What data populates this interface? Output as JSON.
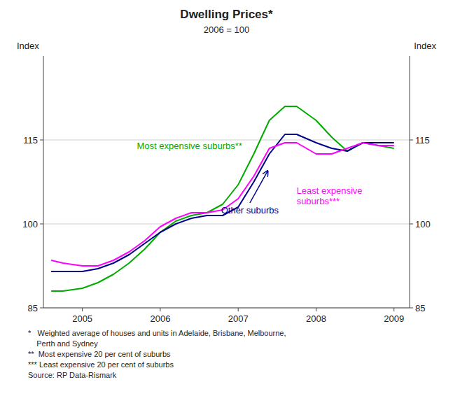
{
  "chart_data": {
    "type": "line",
    "title": "Dwelling Prices*",
    "subtitle": "2006 = 100",
    "y_label": "Index",
    "y2_label": "Index",
    "x": [
      2004.6,
      2004.75,
      2005.0,
      2005.2,
      2005.4,
      2005.6,
      2005.8,
      2006.0,
      2006.2,
      2006.4,
      2006.6,
      2006.8,
      2007.0,
      2007.2,
      2007.4,
      2007.6,
      2007.75,
      2008.0,
      2008.2,
      2008.4,
      2008.6,
      2008.8,
      2009.0
    ],
    "xlim": [
      2004.5,
      2009.2
    ],
    "xticks": [
      2005,
      2006,
      2007,
      2008,
      2009
    ],
    "ylim": [
      85,
      130
    ],
    "yticks": [
      85,
      100,
      115
    ],
    "y2lim": [
      85,
      130
    ],
    "y2ticks": [
      85,
      100,
      115
    ],
    "grid": true,
    "series": [
      {
        "name": "Most expensive suburbs**",
        "color": "#00aa00",
        "values": [
          88.0,
          88.0,
          88.5,
          89.5,
          91.0,
          93.0,
          95.5,
          98.5,
          100.5,
          101.5,
          102.0,
          103.5,
          107.0,
          112.5,
          118.5,
          121.0,
          121.0,
          118.5,
          115.5,
          113.0,
          114.5,
          114.0,
          113.5
        ],
        "label_x": 2005.7,
        "label_y": 113.0
      },
      {
        "name": "Other suburbs",
        "color": "#00008b",
        "values": [
          91.5,
          91.5,
          91.5,
          92.0,
          93.0,
          94.5,
          96.5,
          98.5,
          100.0,
          101.0,
          101.5,
          101.5,
          103.0,
          107.5,
          112.5,
          116.0,
          116.0,
          114.5,
          113.5,
          113.0,
          114.5,
          114.5,
          114.5
        ],
        "label_x": 2007.15,
        "label_y": 103.5,
        "arrow_x": 2007.38,
        "arrow_y": 109.5
      },
      {
        "name": "Least expensive\nsuburbs***",
        "color": "#ff00ff",
        "values": [
          93.5,
          93.0,
          92.5,
          92.5,
          93.5,
          95.0,
          97.0,
          99.5,
          101.0,
          102.0,
          102.0,
          102.5,
          104.5,
          108.5,
          113.5,
          114.5,
          114.5,
          112.5,
          112.5,
          113.5,
          114.5,
          114.0,
          114.0
        ],
        "label_x": 2007.75,
        "label_y": 107.0
      }
    ],
    "footnotes": [
      "*   Weighted average of houses and units in Adelaide, Brisbane, Melbourne,",
      "    Perth and Sydney",
      "**  Most expensive 20 per cent of suburbs",
      "*** Least expensive 20 per cent of suburbs",
      "Source: RP Data-Rismark"
    ]
  }
}
